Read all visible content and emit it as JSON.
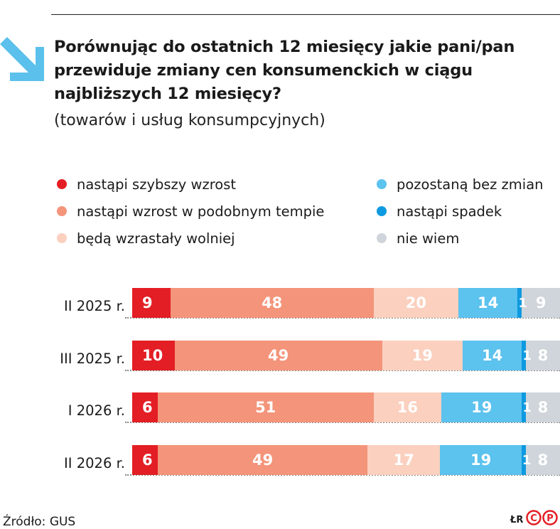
{
  "title": "Porównując do ostatnich 12 miesięcy jakie pani/pan przewiduje zmiany cen konsumenckich w ciągu najbliższych 12 miesięcy?",
  "subtitle": "(towarów i usług konsumpcyjnych)",
  "source": "Źródło: GUS",
  "credit": "ŁR",
  "logo_text": "CP",
  "colors": {
    "accent": "#5bc0eb",
    "red": "#e31e24",
    "salmon": "#f4947a",
    "peach": "#fbd0bf",
    "lightblue": "#5cc2ee",
    "blue": "#0d9ae0",
    "grey": "#cfd5da"
  },
  "chart_data": {
    "type": "bar",
    "orientation": "horizontal-stacked",
    "categories": [
      "II 2025 r.",
      "III 2025 r.",
      "I 2026 r.",
      "II 2026 r."
    ],
    "series": [
      {
        "name": "nastąpi szybszy wzrost",
        "color": "#e31e24",
        "values": [
          9,
          10,
          6,
          6
        ]
      },
      {
        "name": "nastąpi wzrost w podobnym tempie",
        "color": "#f4947a",
        "values": [
          48,
          49,
          51,
          49
        ]
      },
      {
        "name": "będą wzrastały wolniej",
        "color": "#fbd0bf",
        "values": [
          20,
          19,
          16,
          17
        ]
      },
      {
        "name": "pozostaną bez zmian",
        "color": "#5cc2ee",
        "values": [
          14,
          14,
          19,
          19
        ]
      },
      {
        "name": "nastąpi spadek",
        "color": "#0d9ae0",
        "values": [
          1,
          1,
          1,
          1
        ]
      },
      {
        "name": "nie wiem",
        "color": "#cfd5da",
        "values": [
          9,
          8,
          8,
          8
        ]
      }
    ],
    "legend_placement": "top"
  }
}
